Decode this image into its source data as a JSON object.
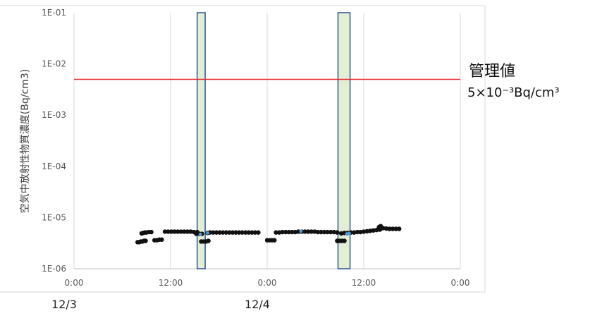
{
  "chart_data": {
    "type": "scatter",
    "ylabel": "空気中放射性物質濃度(Bq/cm3)",
    "y_scale": "log",
    "ylim": [
      1e-06,
      0.1
    ],
    "y_ticks": [
      {
        "value": 0.1,
        "label": "1E-01"
      },
      {
        "value": 0.01,
        "label": "1E-02"
      },
      {
        "value": 0.001,
        "label": "1E-03"
      },
      {
        "value": 0.0001,
        "label": "1E-04"
      },
      {
        "value": 1e-05,
        "label": "1E-05"
      },
      {
        "value": 1e-06,
        "label": "1E-06"
      }
    ],
    "xlim": [
      "12/3 0:00",
      "12/5 0:00"
    ],
    "x_ticks": [
      {
        "value": 0,
        "label": "0:00"
      },
      {
        "value": 12,
        "label": "12:00"
      },
      {
        "value": 24,
        "label": "0:00"
      },
      {
        "value": 36,
        "label": "12:00"
      },
      {
        "value": 48,
        "label": "0:00"
      }
    ],
    "x_date_labels": [
      {
        "value": 0,
        "label": "12/3"
      },
      {
        "value": 24,
        "label": "12/4"
      }
    ],
    "grid": "vertical",
    "limit_line": {
      "value": 0.005,
      "color": "#e8282b",
      "label": "管理値",
      "value_label": "5×10⁻³Bq/cm³"
    },
    "highlight_bands": [
      {
        "start": 15.3,
        "end": 16.3
      },
      {
        "start": 32.8,
        "end": 34.3
      }
    ],
    "series": [
      {
        "color": "#111111",
        "points": [
          [
            7.9,
            3.3e-06
          ],
          [
            8.1,
            3.3e-06
          ],
          [
            8.3,
            3.4e-06
          ],
          [
            8.5,
            3.4e-06
          ],
          [
            8.7,
            3.5e-06
          ],
          [
            8.9,
            3.5e-06
          ],
          [
            8.4,
            4.9e-06
          ],
          [
            8.6,
            5e-06
          ],
          [
            8.8,
            5.1e-06
          ],
          [
            9.0,
            5.1e-06
          ],
          [
            9.3,
            5.2e-06
          ],
          [
            9.6,
            5.2e-06
          ],
          [
            10.0,
            3.6e-06
          ],
          [
            10.3,
            3.6e-06
          ],
          [
            10.6,
            3.7e-06
          ],
          [
            10.9,
            3.7e-06
          ],
          [
            11.3,
            5.3e-06
          ],
          [
            11.7,
            5.3e-06
          ],
          [
            12.1,
            5.3e-06
          ],
          [
            12.5,
            5.3e-06
          ],
          [
            12.9,
            5.3e-06
          ],
          [
            13.3,
            5.3e-06
          ],
          [
            13.7,
            5.3e-06
          ],
          [
            14.1,
            5.3e-06
          ],
          [
            14.5,
            5.3e-06
          ],
          [
            14.9,
            5.2e-06
          ],
          [
            15.3,
            5.2e-06
          ],
          [
            15.2,
            4.8e-06
          ],
          [
            15.6,
            4.8e-06
          ],
          [
            15.9,
            4.8e-06
          ],
          [
            15.8,
            3.4e-06
          ],
          [
            16.1,
            3.4e-06
          ],
          [
            16.4,
            3.4e-06
          ],
          [
            16.7,
            3.5e-06
          ],
          [
            16.6,
            5e-06
          ],
          [
            16.9,
            5.1e-06
          ],
          [
            17.3,
            5.1e-06
          ],
          [
            17.7,
            5.1e-06
          ],
          [
            18.1,
            5.1e-06
          ],
          [
            18.5,
            5.1e-06
          ],
          [
            18.9,
            5.1e-06
          ],
          [
            19.3,
            5.1e-06
          ],
          [
            19.7,
            5.1e-06
          ],
          [
            20.1,
            5.1e-06
          ],
          [
            20.5,
            5.1e-06
          ],
          [
            20.9,
            5.1e-06
          ],
          [
            21.3,
            5.1e-06
          ],
          [
            21.7,
            5.1e-06
          ],
          [
            22.1,
            5.1e-06
          ],
          [
            22.5,
            5.1e-06
          ],
          [
            22.9,
            5.1e-06
          ],
          [
            24.0,
            3.6e-06
          ],
          [
            24.3,
            3.6e-06
          ],
          [
            24.6,
            3.6e-06
          ],
          [
            24.9,
            3.6e-06
          ],
          [
            25.1,
            5.1e-06
          ],
          [
            25.5,
            5.1e-06
          ],
          [
            25.9,
            5.2e-06
          ],
          [
            26.3,
            5.2e-06
          ],
          [
            26.7,
            5.2e-06
          ],
          [
            27.1,
            5.2e-06
          ],
          [
            27.5,
            5.2e-06
          ],
          [
            27.9,
            5.3e-06
          ],
          [
            28.3,
            5.3e-06
          ],
          [
            28.7,
            5.3e-06
          ],
          [
            29.1,
            5.3e-06
          ],
          [
            29.5,
            5.3e-06
          ],
          [
            29.9,
            5.3e-06
          ],
          [
            30.3,
            5.2e-06
          ],
          [
            30.7,
            5.2e-06
          ],
          [
            31.1,
            5.2e-06
          ],
          [
            31.5,
            5.2e-06
          ],
          [
            31.9,
            5.2e-06
          ],
          [
            32.3,
            5.2e-06
          ],
          [
            32.7,
            5.1e-06
          ],
          [
            32.7,
            3.5e-06
          ],
          [
            33.0,
            3.5e-06
          ],
          [
            33.3,
            3.5e-06
          ],
          [
            33.6,
            3.5e-06
          ],
          [
            33.2,
            4.9e-06
          ],
          [
            33.6,
            5e-06
          ],
          [
            34.0,
            5e-06
          ],
          [
            34.4,
            5.1e-06
          ],
          [
            34.8,
            5.1e-06
          ],
          [
            35.2,
            5.2e-06
          ],
          [
            35.6,
            5.2e-06
          ],
          [
            36.0,
            5.3e-06
          ],
          [
            36.4,
            5.4e-06
          ],
          [
            36.8,
            5.5e-06
          ],
          [
            37.2,
            5.6e-06
          ],
          [
            37.6,
            5.7e-06
          ],
          [
            38.0,
            5.8e-06
          ],
          [
            37.9,
            6.5e-06
          ],
          [
            38.1,
            6.8e-06
          ],
          [
            38.4,
            6.2e-06
          ],
          [
            38.8,
            6.1e-06
          ],
          [
            39.2,
            6e-06
          ],
          [
            39.6,
            6e-06
          ],
          [
            40.0,
            6e-06
          ],
          [
            40.4,
            6e-06
          ]
        ]
      },
      {
        "color": "#4a9bd8",
        "points": [
          [
            15.7,
            4.7e-06
          ],
          [
            16.6,
            5e-06
          ],
          [
            28.2,
            5.4e-06
          ],
          [
            33.9,
            4.8e-06
          ],
          [
            34.2,
            4.9e-06
          ]
        ]
      }
    ]
  }
}
